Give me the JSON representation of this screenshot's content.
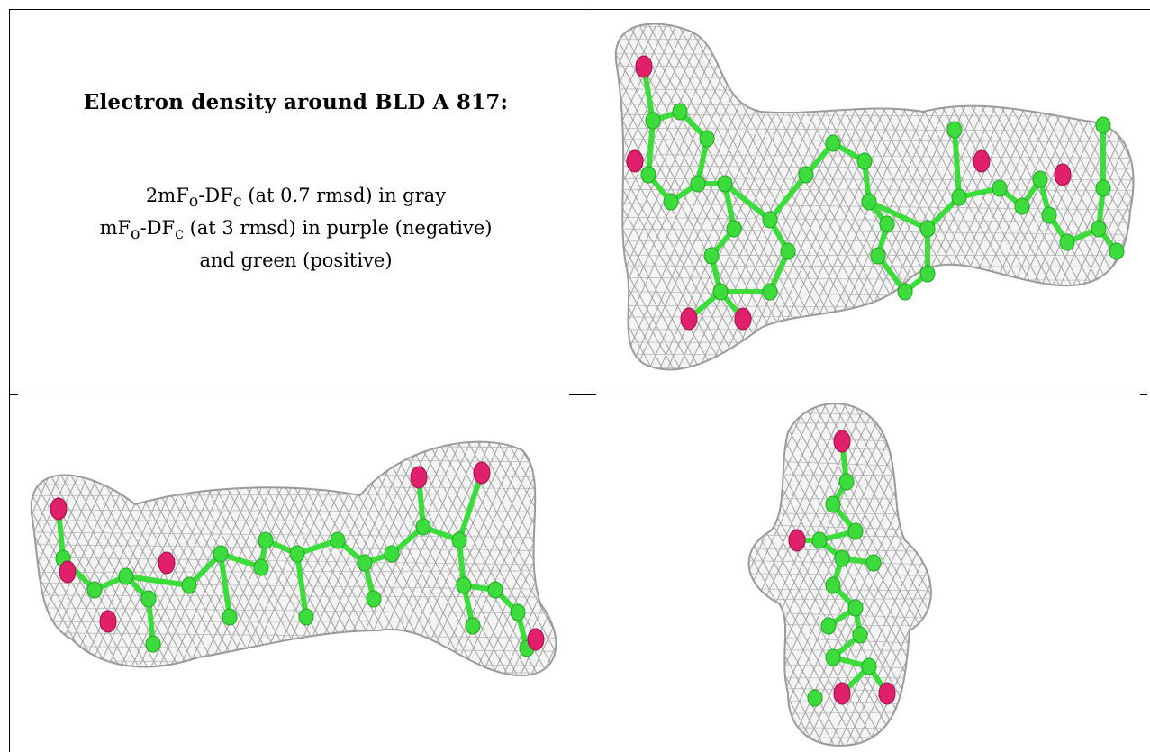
{
  "caption": {
    "title": "Electron density around BLD A 817:",
    "line1": {
      "a": "2mF",
      "o": "o",
      "b": "-DF",
      "c": "c",
      "rest": " (at 0.7 rmsd) in gray"
    },
    "line2": {
      "a": "mF",
      "o": "o",
      "b": "-DF",
      "c": "c",
      "rest": " (at 3 rmsd) in purple (negative)"
    },
    "line3": "and green (positive)"
  },
  "panels": [
    {
      "id": "top-right",
      "view": "face-on"
    },
    {
      "id": "bottom-left",
      "view": "side-on"
    },
    {
      "id": "bottom-right",
      "view": "end-on"
    }
  ],
  "colors": {
    "mesh": "#9a9a9a",
    "carbon": "#3ddc3d",
    "oxygen": "#e0206b",
    "rule": "#000000"
  }
}
